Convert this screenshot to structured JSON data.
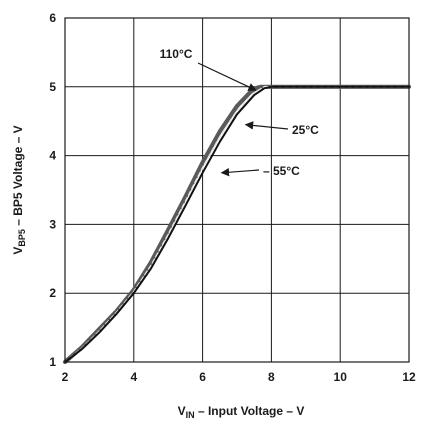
{
  "chart_data": {
    "type": "line",
    "xlabel": {
      "main": "V",
      "sub": "IN",
      "rest": " – Input Voltage – V"
    },
    "ylabel": {
      "main": "V",
      "sub": "BP5",
      "rest": " – BP5 Voltage – V"
    },
    "xlim": [
      2,
      12
    ],
    "ylim": [
      1,
      6
    ],
    "xticks": [
      2,
      4,
      6,
      8,
      10,
      12
    ],
    "yticks": [
      1,
      2,
      3,
      4,
      5,
      6
    ],
    "grid": true,
    "series": [
      {
        "name": "110°C",
        "color": "#5a5a5a",
        "x": [
          2.0,
          2.5,
          3.0,
          3.5,
          4.0,
          4.5,
          5.0,
          5.5,
          6.0,
          6.5,
          7.0,
          7.4,
          7.6,
          7.7,
          8.0,
          9.0,
          10.0,
          11.0,
          12.0
        ],
        "y": [
          1.0,
          1.22,
          1.48,
          1.74,
          2.05,
          2.45,
          2.92,
          3.4,
          3.9,
          4.35,
          4.72,
          4.93,
          4.99,
          5.0,
          5.0,
          5.0,
          5.0,
          5.0,
          5.0
        ]
      },
      {
        "name": "25°C",
        "color": "#e8e8e8",
        "x": [
          2.0,
          2.5,
          3.0,
          3.5,
          4.0,
          4.5,
          5.0,
          5.5,
          6.0,
          6.5,
          7.0,
          7.5,
          7.8,
          8.0,
          9.0,
          10.0,
          11.0,
          12.0
        ],
        "y": [
          1.0,
          1.2,
          1.45,
          1.72,
          2.02,
          2.4,
          2.85,
          3.33,
          3.82,
          4.27,
          4.65,
          4.91,
          5.0,
          5.0,
          5.0,
          5.0,
          5.0,
          5.0
        ]
      },
      {
        "name": "– 55°C",
        "color": "#111111",
        "x": [
          2.0,
          2.5,
          3.0,
          3.5,
          4.0,
          4.5,
          5.0,
          5.5,
          6.0,
          6.5,
          7.0,
          7.5,
          7.8,
          8.0,
          9.0,
          10.0,
          11.0,
          12.0
        ],
        "y": [
          1.0,
          1.19,
          1.43,
          1.7,
          2.0,
          2.36,
          2.8,
          3.27,
          3.75,
          4.2,
          4.6,
          4.88,
          4.98,
          5.0,
          5.0,
          5.0,
          5.0,
          5.0
        ]
      }
    ],
    "annotations": [
      {
        "text": "110°C",
        "target": [
          7.55,
          4.95
        ]
      },
      {
        "text": "25°C",
        "target": [
          7.25,
          4.45
        ]
      },
      {
        "text": "– 55°C",
        "target": [
          6.55,
          3.75
        ]
      }
    ]
  }
}
